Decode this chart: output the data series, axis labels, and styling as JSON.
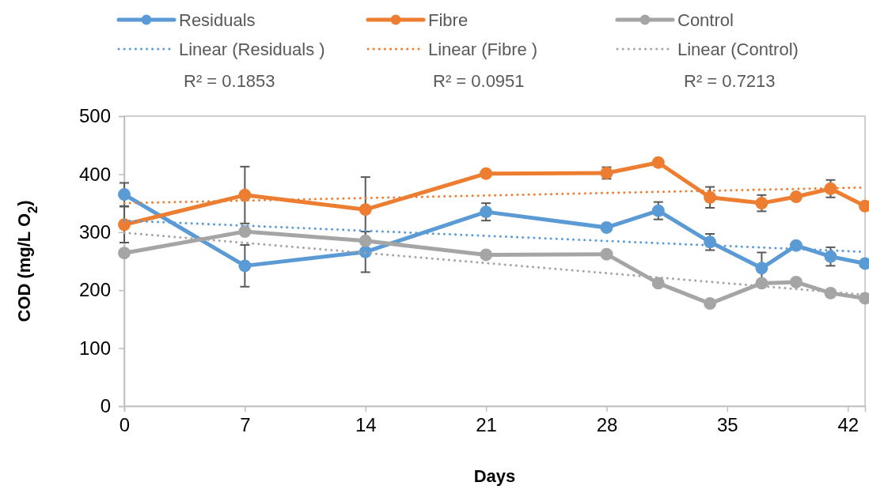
{
  "chart_data": {
    "type": "line",
    "xlabel": "Days",
    "ylabel": "COD (mg/L O$_{2}$)",
    "xlim": [
      0,
      43
    ],
    "xticks": [
      0,
      7,
      14,
      21,
      28,
      35,
      42
    ],
    "ylim": [
      0,
      500
    ],
    "yticks": [
      0,
      100,
      200,
      300,
      400,
      500
    ],
    "legend": "top",
    "marker": "circle",
    "line_style": "solid",
    "annotations": [
      "R² = 0.1853",
      "R² = 0.0951",
      "R² = 0.7213"
    ],
    "series": [
      {
        "name": "Residuals",
        "color": "#5b9bd5",
        "x": [
          0,
          7,
          14,
          21,
          28,
          31,
          34,
          37,
          39,
          41,
          43
        ],
        "values": [
          365,
          242,
          266,
          335,
          308,
          337,
          283,
          238,
          277,
          258,
          246
        ],
        "errors": [
          20,
          36,
          35,
          15,
          null,
          15,
          14,
          27,
          null,
          16,
          null
        ]
      },
      {
        "name": "Fibre",
        "color": "#ed7d31",
        "x": [
          0,
          7,
          14,
          21,
          28,
          31,
          34,
          37,
          39,
          41,
          43
        ],
        "values": [
          313,
          364,
          339,
          401,
          402,
          420,
          360,
          350,
          361,
          375,
          345
        ],
        "errors": [
          31,
          49,
          56,
          null,
          10,
          null,
          18,
          14,
          null,
          15,
          null
        ]
      },
      {
        "name": "Control",
        "color": "#a5a5a5",
        "x": [
          0,
          7,
          14,
          21,
          28,
          31,
          34,
          37,
          39,
          41,
          43
        ],
        "values": [
          264,
          301,
          285,
          261,
          262,
          212,
          177,
          212,
          214,
          195,
          186
        ]
      },
      {
        "name": "Linear (Residuals )",
        "color": "#5b9bd5",
        "line_style": "dotted",
        "marker": "none",
        "x": [
          0,
          43
        ],
        "values": [
          320,
          266
        ]
      },
      {
        "name": "Linear (Fibre )",
        "color": "#ed7d31",
        "line_style": "dotted",
        "marker": "none",
        "x": [
          0,
          43
        ],
        "values": [
          350,
          377
        ]
      },
      {
        "name": "Linear (Control)",
        "color": "#a5a5a5",
        "line_style": "dotted",
        "marker": "none",
        "x": [
          0,
          43
        ],
        "values": [
          299,
          192
        ]
      }
    ]
  }
}
